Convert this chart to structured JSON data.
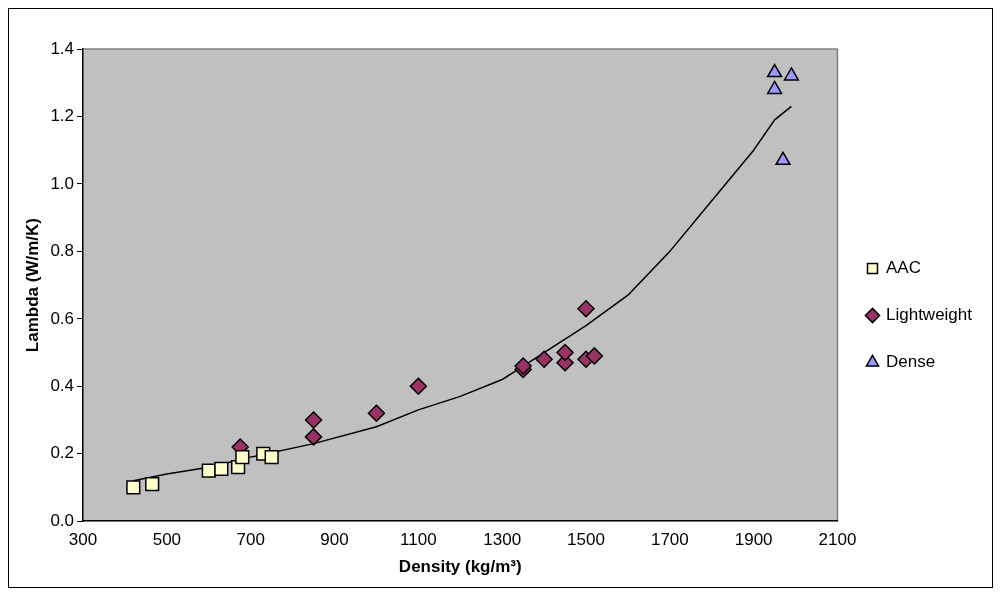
{
  "chart_data": {
    "type": "scatter",
    "xlabel": "Density (kg/m³)",
    "ylabel": "Lambda (W/m/K)",
    "xlim": [
      300,
      2100
    ],
    "xticks": [
      300,
      500,
      700,
      900,
      1100,
      1300,
      1500,
      1700,
      1900,
      2100
    ],
    "ylim": [
      0,
      1.4
    ],
    "yticks": [
      {
        "value": 0,
        "label": "0.0"
      },
      {
        "value": 0.2,
        "label": "0.2"
      },
      {
        "value": 0.4,
        "label": "0.4"
      },
      {
        "value": 0.6,
        "label": "0.6"
      },
      {
        "value": 0.8,
        "label": "0.8"
      },
      {
        "value": 1,
        "label": "1.0"
      },
      {
        "value": 1.2,
        "label": "1.2"
      },
      {
        "value": 1.4,
        "label": "1.4"
      }
    ],
    "grid": false,
    "legend": "right",
    "series": [
      {
        "name": "AAC",
        "color": "#ffffcc",
        "marker": "square",
        "x": [
          420,
          465,
          600,
          630,
          670,
          680,
          730,
          750
        ],
        "values": [
          0.1,
          0.11,
          0.15,
          0.155,
          0.16,
          0.19,
          0.2,
          0.19
        ]
      },
      {
        "name": "Lightweight",
        "color": "#993366",
        "marker": "diamond",
        "x": [
          675,
          850,
          850,
          1000,
          1100,
          1350,
          1350,
          1400,
          1450,
          1450,
          1500,
          1500,
          1520
        ],
        "values": [
          0.22,
          0.25,
          0.3,
          0.32,
          0.4,
          0.45,
          0.46,
          0.48,
          0.47,
          0.5,
          0.48,
          0.63,
          0.49
        ]
      },
      {
        "name": "Dense",
        "color": "#9999ff",
        "marker": "triangle",
        "x": [
          1950,
          1950,
          1990,
          1970
        ],
        "values": [
          1.33,
          1.28,
          1.32,
          1.07
        ]
      },
      {
        "type": "line",
        "color": "#000000",
        "marker": "none",
        "x": [
          420,
          500,
          600,
          700,
          850,
          1000,
          1100,
          1200,
          1300,
          1400,
          1500,
          1600,
          1700,
          1800,
          1900,
          1950,
          1990
        ],
        "values": [
          0.12,
          0.14,
          0.16,
          0.19,
          0.23,
          0.28,
          0.33,
          0.37,
          0.42,
          0.5,
          0.58,
          0.67,
          0.8,
          0.95,
          1.1,
          1.19,
          1.23
        ]
      }
    ]
  }
}
